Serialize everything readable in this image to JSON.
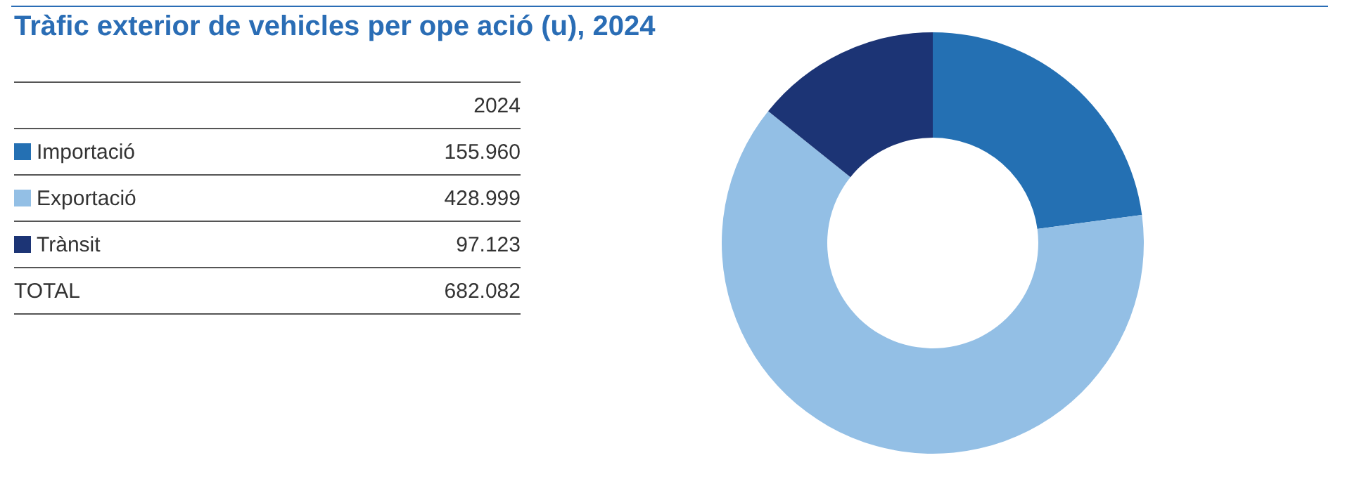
{
  "chart_data": {
    "type": "donut",
    "title": "Tràfic exterior de vehicles per ope ació (u), 2024",
    "categories": [
      "Importació",
      "Exportació",
      "Trànsit"
    ],
    "values": [
      155960,
      428999,
      97123
    ],
    "colors": [
      "#2470b3",
      "#93bfe5",
      "#1c3475"
    ],
    "value_labels": [
      "155.960",
      "428.999",
      "97.123"
    ],
    "totals": [
      "682.082"
    ],
    "annotations": [
      "2024",
      "TOTAL"
    ],
    "legend": "left"
  }
}
